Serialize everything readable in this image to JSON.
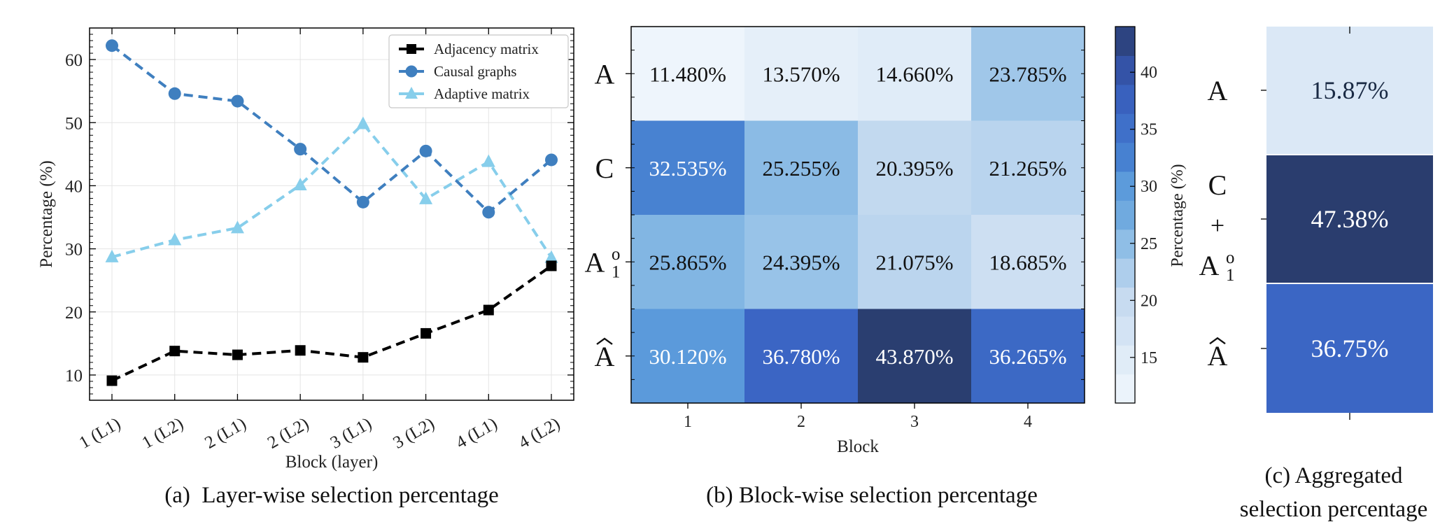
{
  "chart_data": [
    {
      "type": "line",
      "caption": "(a)  Layer-wise selection percentage",
      "xlabel": "Block (layer)",
      "ylabel": "Percentage (%)",
      "categories": [
        "1 (L1)",
        "1 (L2)",
        "2 (L1)",
        "2 (L2)",
        "3 (L1)",
        "3 (L2)",
        "4 (L1)",
        "4 (L2)"
      ],
      "ylim": [
        6,
        65
      ],
      "yticks": [
        10,
        20,
        30,
        40,
        50,
        60
      ],
      "grid": true,
      "legend_position": "top-right",
      "series": [
        {
          "name": "Adjacency matrix",
          "color": "#000000",
          "marker": "square",
          "values": [
            9.1,
            13.8,
            13.2,
            13.9,
            12.8,
            16.6,
            20.3,
            27.3
          ]
        },
        {
          "name": "Causal graphs",
          "color": "#3f7fbf",
          "marker": "circle",
          "values": [
            62.2,
            54.6,
            53.4,
            45.8,
            37.4,
            45.5,
            35.8,
            44.1
          ]
        },
        {
          "name": "Adaptive matrix",
          "color": "#87ceeb",
          "marker": "triangle",
          "values": [
            28.7,
            31.4,
            33.3,
            40.1,
            49.8,
            37.9,
            43.8,
            28.6
          ]
        }
      ]
    },
    {
      "type": "heatmap",
      "caption": "(b) Block-wise selection percentage",
      "xlabel": "Block",
      "x": [
        "1",
        "2",
        "3",
        "4"
      ],
      "y": [
        "A",
        "C",
        "A1o",
        "Ahat"
      ],
      "values": [
        [
          11.48,
          13.57,
          14.66,
          23.785
        ],
        [
          32.535,
          25.255,
          20.395,
          21.265
        ],
        [
          25.865,
          24.395,
          21.075,
          18.685
        ],
        [
          30.12,
          36.78,
          43.87,
          36.265
        ]
      ],
      "labels": [
        [
          "11.480%",
          "13.570%",
          "14.660%",
          "23.785%"
        ],
        [
          "32.535%",
          "25.255%",
          "20.395%",
          "21.265%"
        ],
        [
          "25.865%",
          "24.395%",
          "21.075%",
          "18.685%"
        ],
        [
          "30.120%",
          "36.780%",
          "43.870%",
          "36.265%"
        ]
      ],
      "colorbar": {
        "label": "Percentage (%)",
        "range": [
          11,
          44
        ],
        "ticks": [
          15,
          20,
          25,
          30,
          35,
          40
        ]
      }
    },
    {
      "type": "heatmap",
      "caption_lines": [
        "(c) Aggregated",
        "selection percentage"
      ],
      "y": [
        "A",
        "C + A1o",
        "Ahat"
      ],
      "values": [
        15.87,
        47.38,
        36.75
      ],
      "labels": [
        "15.87%",
        "47.38%",
        "36.75%"
      ]
    }
  ]
}
